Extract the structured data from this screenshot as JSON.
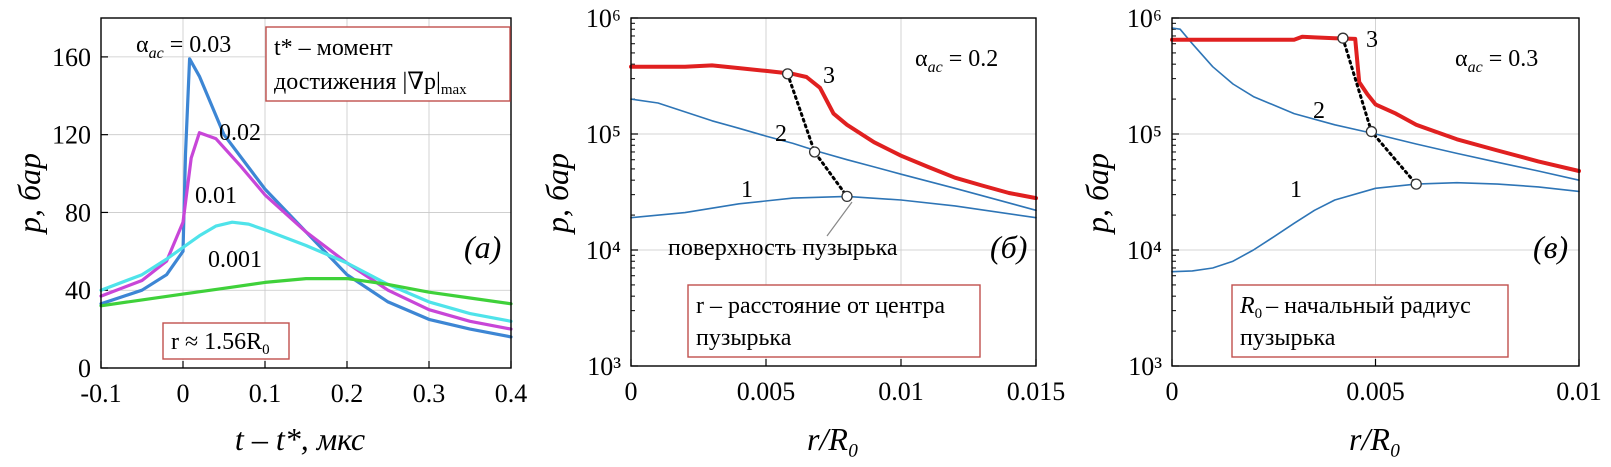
{
  "chart_data": [
    {
      "type": "line",
      "panel_tag": "(a)",
      "xlabel": "t – t*, мкс",
      "ylabel": "p, бар",
      "xlim": [
        -0.1,
        0.4
      ],
      "ylim": [
        0,
        180
      ],
      "xticks": [
        -0.1,
        0,
        0.1,
        0.2,
        0.3,
        0.4
      ],
      "xtick_labels": [
        "-0.1",
        "0",
        "0.1",
        "0.2",
        "0.3",
        "0.4"
      ],
      "yticks": [
        0,
        40,
        80,
        120,
        160
      ],
      "ytick_labels": [
        "0",
        "40",
        "80",
        "120",
        "160"
      ],
      "grid": true,
      "series_label_prefix": "α",
      "series_label_sub": "ac",
      "series_label_eq": " = ",
      "series": [
        {
          "name": "0.03",
          "color": "#3d86d4",
          "x": [
            -0.1,
            -0.05,
            -0.02,
            0.0,
            0.003,
            0.008,
            0.02,
            0.05,
            0.1,
            0.15,
            0.2,
            0.25,
            0.3,
            0.35,
            0.4
          ],
          "y": [
            33,
            40,
            48,
            60,
            110,
            159,
            150,
            120,
            92,
            70,
            48,
            34,
            25,
            20,
            16
          ]
        },
        {
          "name": "0.02",
          "color": "#c846d8",
          "x": [
            -0.1,
            -0.05,
            -0.02,
            0.0,
            0.01,
            0.02,
            0.04,
            0.07,
            0.1,
            0.15,
            0.2,
            0.25,
            0.3,
            0.35,
            0.4
          ],
          "y": [
            37,
            45,
            55,
            75,
            108,
            121,
            118,
            104,
            89,
            70,
            54,
            40,
            30,
            24,
            20
          ]
        },
        {
          "name": "0.01",
          "color": "#4fe3ea",
          "x": [
            -0.1,
            -0.05,
            -0.02,
            0.0,
            0.02,
            0.04,
            0.06,
            0.08,
            0.1,
            0.15,
            0.2,
            0.25,
            0.3,
            0.35,
            0.4
          ],
          "y": [
            40,
            48,
            56,
            62,
            68,
            73,
            75,
            74,
            71,
            63,
            54,
            43,
            34,
            28,
            24
          ]
        },
        {
          "name": "0.001",
          "color": "#3fd13a",
          "x": [
            -0.1,
            -0.05,
            0.0,
            0.05,
            0.1,
            0.15,
            0.2,
            0.25,
            0.3,
            0.35,
            0.4
          ],
          "y": [
            32,
            35,
            38,
            41,
            44,
            46,
            46,
            43,
            39,
            36,
            33
          ]
        }
      ],
      "annotations": {
        "note_t": "t* – момент",
        "note_t2": "достижения |∇p|",
        "note_t2_sub": "max",
        "note_r": "r ≈ 1.56R",
        "note_r_sub": "0"
      }
    },
    {
      "type": "line",
      "panel_tag": "(б)",
      "xlabel": "r/R₀",
      "ylabel": "p, бар",
      "xscale": "linear",
      "yscale": "log",
      "xlim": [
        0,
        0.015
      ],
      "ylim": [
        1000,
        1000000
      ],
      "xticks": [
        0,
        0.005,
        0.01,
        0.015
      ],
      "xtick_labels": [
        "0",
        "0.005",
        "0.01",
        "0.015"
      ],
      "yticks": [
        1000,
        10000,
        100000,
        1000000
      ],
      "ytick_labels": [
        "10³",
        "10⁴",
        "10⁵",
        "10⁶"
      ],
      "grid": true,
      "alpha_label": "α",
      "alpha_sub": "ac",
      "alpha_value": " = 0.2",
      "series": [
        {
          "name": "1",
          "color": "#2e75b6",
          "width": 1.6,
          "x": [
            0,
            0.002,
            0.004,
            0.006,
            0.008,
            0.01,
            0.012,
            0.015
          ],
          "y": [
            19000,
            21000,
            25000,
            28000,
            29000,
            27000,
            24000,
            19000
          ]
        },
        {
          "name": "2",
          "color": "#2e75b6",
          "width": 1.6,
          "x": [
            0,
            0.001,
            0.002,
            0.003,
            0.004,
            0.005,
            0.006,
            0.007,
            0.008,
            0.009,
            0.01,
            0.012,
            0.015
          ],
          "y": [
            200000,
            185000,
            155000,
            130000,
            112000,
            96000,
            83000,
            70000,
            60000,
            52000,
            45000,
            34000,
            22000
          ]
        },
        {
          "name": "3",
          "color": "#e02020",
          "width": 4,
          "x": [
            0,
            0.001,
            0.002,
            0.003,
            0.004,
            0.005,
            0.006,
            0.0065,
            0.007,
            0.0075,
            0.008,
            0.009,
            0.01,
            0.011,
            0.012,
            0.013,
            0.014,
            0.015
          ],
          "y": [
            380000,
            380000,
            380000,
            390000,
            370000,
            350000,
            330000,
            310000,
            250000,
            150000,
            120000,
            85000,
            65000,
            52000,
            42000,
            36000,
            31000,
            28000
          ]
        }
      ],
      "boundary": {
        "x": [
          0.0058,
          0.0068,
          0.008
        ],
        "y": [
          330000,
          70000,
          29000
        ]
      },
      "annotations": {
        "surface": "поверхность пузырька",
        "note_r_line1": "r – расстояние от центра",
        "note_r_line2": "пузырька"
      }
    },
    {
      "type": "line",
      "panel_tag": "(в)",
      "xlabel": "r/R₀",
      "ylabel": "p, бар",
      "xscale": "linear",
      "yscale": "log",
      "xlim": [
        0,
        0.01
      ],
      "ylim": [
        1000,
        1000000
      ],
      "xticks": [
        0,
        0.005,
        0.01
      ],
      "xtick_labels": [
        "0",
        "0.005",
        "0.01"
      ],
      "yticks": [
        1000,
        10000,
        100000,
        1000000
      ],
      "ytick_labels": [
        "10³",
        "10⁴",
        "10⁵",
        "10⁶"
      ],
      "grid": true,
      "alpha_label": "α",
      "alpha_sub": "ac",
      "alpha_value": " = 0.3",
      "series": [
        {
          "name": "1",
          "color": "#2e75b6",
          "width": 1.6,
          "x": [
            0,
            0.0005,
            0.001,
            0.0015,
            0.002,
            0.0025,
            0.003,
            0.0035,
            0.004,
            0.005,
            0.006,
            0.007,
            0.008,
            0.009,
            0.01
          ],
          "y": [
            6500,
            6600,
            7000,
            8000,
            10000,
            13000,
            17000,
            22000,
            27000,
            34000,
            37000,
            38000,
            37000,
            35000,
            32000
          ]
        },
        {
          "name": "2",
          "color": "#2e75b6",
          "width": 1.6,
          "x": [
            0,
            0.0002,
            0.0005,
            0.001,
            0.0015,
            0.002,
            0.003,
            0.004,
            0.005,
            0.006,
            0.007,
            0.008,
            0.009,
            0.01
          ],
          "y": [
            820000,
            800000,
            600000,
            380000,
            270000,
            210000,
            150000,
            120000,
            100000,
            82000,
            68000,
            57000,
            48000,
            40000
          ]
        },
        {
          "name": "3",
          "color": "#e02020",
          "width": 4,
          "x": [
            0,
            0.001,
            0.002,
            0.003,
            0.0032,
            0.0035,
            0.004,
            0.0045,
            0.0046,
            0.0048,
            0.005,
            0.0055,
            0.006,
            0.007,
            0.008,
            0.009,
            0.01
          ],
          "y": [
            650000,
            650000,
            650000,
            650000,
            690000,
            680000,
            670000,
            660000,
            280000,
            220000,
            180000,
            150000,
            120000,
            90000,
            72000,
            58000,
            48000
          ]
        }
      ],
      "boundary": {
        "x": [
          0.0042,
          0.0049,
          0.006
        ],
        "y": [
          670000,
          105000,
          37000
        ]
      },
      "annotations": {
        "note_r_line1": "– начальный радиус",
        "note_r_line1_var": "R",
        "note_r_line1_sub": "0",
        "note_r_line2": "пузырька"
      }
    }
  ]
}
